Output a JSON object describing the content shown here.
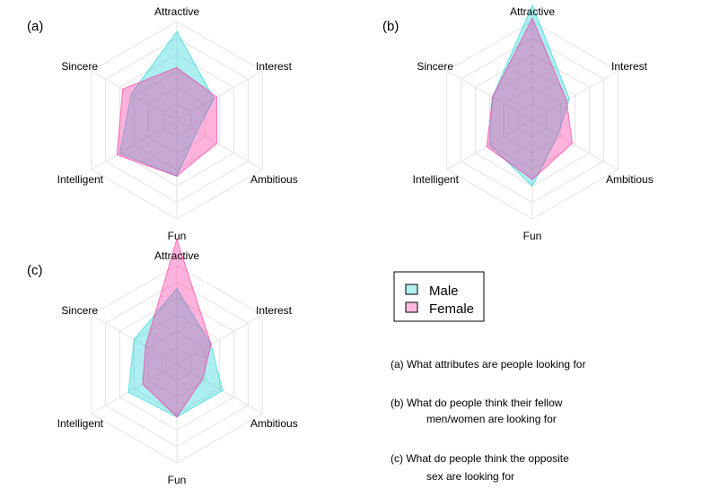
{
  "chart_data": [
    {
      "type": "radar",
      "panel_label": "(a)",
      "axes": [
        "Attractive",
        "Interest",
        "Ambitious",
        "Fun",
        "Intelligent",
        "Sincere"
      ],
      "rmax": 30,
      "grid_levels": [
        5,
        10,
        15,
        20,
        25,
        30
      ],
      "series": [
        {
          "name": "Male",
          "values": [
            27,
            13,
            7,
            17,
            20,
            16
          ]
        },
        {
          "name": "Female",
          "values": [
            16,
            14,
            14,
            17,
            21,
            19
          ]
        }
      ]
    },
    {
      "type": "radar",
      "panel_label": "(b)",
      "axes": [
        "Attractive",
        "Interest",
        "Ambitious",
        "Fun",
        "Intelligent",
        "Sincere"
      ],
      "rmax": 30,
      "grid_levels": [
        5,
        10,
        15,
        20,
        25,
        30
      ],
      "series": [
        {
          "name": "Male",
          "values": [
            35,
            13,
            9,
            20,
            15,
            14
          ]
        },
        {
          "name": "Female",
          "values": [
            31,
            12,
            14,
            18,
            16,
            14
          ]
        }
      ]
    },
    {
      "type": "radar",
      "panel_label": "(c)",
      "axes": [
        "Attractive",
        "Interest",
        "Ambitious",
        "Fun",
        "Intelligent",
        "Sincere"
      ],
      "rmax": 30,
      "grid_levels": [
        5,
        10,
        15,
        20,
        25,
        30
      ],
      "series": [
        {
          "name": "Male",
          "values": [
            23,
            12,
            16,
            16,
            17,
            15
          ]
        },
        {
          "name": "Female",
          "values": [
            38,
            12,
            9,
            16,
            12,
            11
          ]
        }
      ]
    }
  ],
  "legend": {
    "items": [
      {
        "label": "Male",
        "color": "#00CED1"
      },
      {
        "label": "Female",
        "color": "#FF1493"
      }
    ]
  },
  "notes": [
    {
      "line1": "(a) What attributes are people looking for",
      "line2": ""
    },
    {
      "line1": "(b) What do people think their fellow",
      "line2": "men/women are looking for"
    },
    {
      "line1": "(c) What do people think the opposite",
      "line2": "sex are looking for"
    }
  ],
  "colors": {
    "male_fill": "#00CED1",
    "female_fill": "#FF1493",
    "overlap_fill": "#A8A8D8",
    "grid": "#e3e3e3"
  }
}
